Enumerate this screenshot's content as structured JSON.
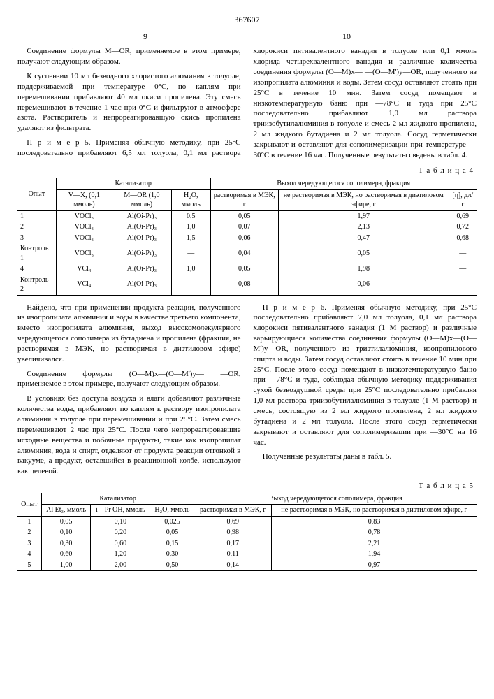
{
  "doc_number": "367607",
  "col_left": "9",
  "col_right": "10",
  "text": {
    "p1": "Соединение формулы M—OR, применяемое в этом примере, получают следующим образом.",
    "p2": "К суспензии 10 мл безводного хлористого алюминия в толуоле, поддерживаемой при температуре 0°С, по каплям при перемешивании прибавляют 40 мл окиси пропилена. Эту смесь перемешивают в течение 1 час при 0°С и фильтруют в атмосфере азота. Растворитель и непрореагировавшую окись пропилена удаляют из фильтрата.",
    "p3": "П р и м е р 5. Применяя обычную методику, при 25°С последовательно прибавляют 6,5 мл толуола, 0,1 мл раствора хлорокиси пятивалентного ванадия в толуоле или 0,1 ммоль хлорида четырехвалентного ванадия и различные количества соединения формулы (O—M)x— —(O—M')y—OR, полученного из изопропилата алюминия и воды. Затем сосуд оставляют стоять при 25°С в течение 10 мин. Затем сосуд помещают в низкотемпературную баню при —78°С и туда при 25°С последовательно прибавляют 1,0 мл раствора триизобутилалюминия в толуоле и смесь 2 мл жидкого пропилена, 2 мл жидкого бутадиена и 2 мл толуола. Сосуд герметически закрывают и оставляют для сополимеризации при температуре —30°С в течение 16 час. Полученные результаты сведены в табл. 4.",
    "p4": "Найдено, что при применении продукта реакции, полученного из изопропилата алюминия и воды в качестве третьего компонента, вместо изопропилата алюминия, выход высокомолекулярного чередующегося сополимера из бутадиена и пропилена (фракция, не растворимая в МЭК, но растворимая в диэтиловом эфире) увеличивался.",
    "p5": "Соединение формулы (O—M)x—(O—M')y— —OR, применяемое в этом примере, получают следующим образом.",
    "p6": "В условиях без доступа воздуха и влаги добавляют различные количества воды, прибавляют по каплям к раствору изопропилата алюминия в толуоле при перемешивании и при 25°С. Затем смесь перемешивают 2 час при 25°С. После чего непрореагировавшие исходные вещества и побочные продукты, такие как изопропилат алюминия, вода и спирт, отделяют от продукта реакции отгонкой в вакууме, а продукт, оставшийся в реакционной колбе, используют как целевой.",
    "p7": "П р и м е р 6. Применяя обычную методику, при 25°С последовательно прибавляют 7,0 мл толуола, 0,1 мл раствора хлорокиси пятивалентного ванадия (1 М раствор) и различные варьирующиеся количества соединения формулы (O—M)x—(O—M')y—OR, полученного из триэтилалюминия, изопропилового спирта и воды. Затем сосуд оставляют стоять в течение 10 мин при 25°С. После этого сосуд помещают в низкотемпературную баню при —78°С и туда, соблюдая обычную методику поддерживания сухой безвоздушной среды при 25°С последовательно прибавляя 1,0 мл раствора триизобутилалюминия в толуоле (1 М раствор) и смесь, состоящую из 2 мл жидкого пропилена, 2 мл жидкого бутадиена и 2 мл толуола. После этого сосуд герметически закрывают и оставляют для сополимеризации при —30°С на 16 час.",
    "p8": "Полученные результаты даны в табл. 5."
  },
  "table4": {
    "label": "Т а б л и ц а 4",
    "headers": {
      "opyt": "Опыт",
      "cat": "Катализатор",
      "vx": "V—X, (0,1 ммоль)",
      "mor": "M—OR (1,0 ммоль)",
      "h2o": "H₂O, ммоль",
      "out": "Выход чередующегося сополимера, фракция",
      "sol": "растворимая в МЭК, г",
      "insol": "не растворимая в МЭК, но растворимая в диэтиловом эфире, г",
      "eta": "[η], дл/г"
    },
    "rows": [
      [
        "1",
        "VOCl₃",
        "Al(Oi-Pr)₃",
        "0,5",
        "0,05",
        "1,97",
        "0,69"
      ],
      [
        "2",
        "VOCl₃",
        "Al(Oi-Pr)₃",
        "1,0",
        "0,07",
        "2,13",
        "0,72"
      ],
      [
        "3",
        "VOCl₃",
        "Al(Oi-Pr)₃",
        "1,5",
        "0,06",
        "0,47",
        "0,68"
      ],
      [
        "Контроль 1",
        "VOCl₃",
        "Al(Oi-Pr)₃",
        "—",
        "0,04",
        "0,05",
        "—"
      ],
      [
        "4",
        "VCl₄",
        "Al(Oi-Pr)₃",
        "1,0",
        "0,05",
        "1,98",
        "—"
      ],
      [
        "Контроль 2",
        "VCl₄",
        "Al(Oi-Pr)₃",
        "—",
        "0,08",
        "0,06",
        "—"
      ]
    ]
  },
  "table5": {
    "label": "Т а б л и ц а 5",
    "headers": {
      "opyt": "Опыт",
      "cat": "Катализатор",
      "alet": "Al Et₃, ммоль",
      "iproh": "i—Pr OH, ммоль",
      "h2o": "H₂O, ммоль",
      "out": "Выход чередующегося сополимера, фракция",
      "sol": "растворимая в МЭК, г",
      "insol": "не растворимая в МЭК, но растворимая в диэтиловом эфире, г"
    },
    "rows": [
      [
        "1",
        "0,05",
        "0,10",
        "0,025",
        "0,69",
        "0,83"
      ],
      [
        "2",
        "0,10",
        "0,20",
        "0,05",
        "0,98",
        "0,78"
      ],
      [
        "3",
        "0,30",
        "0,60",
        "0,15",
        "0,17",
        "2,21"
      ],
      [
        "4",
        "0,60",
        "1,20",
        "0,30",
        "0,11",
        "1,94"
      ],
      [
        "5",
        "1,00",
        "2,00",
        "0,50",
        "0,14",
        "0,97"
      ]
    ]
  }
}
